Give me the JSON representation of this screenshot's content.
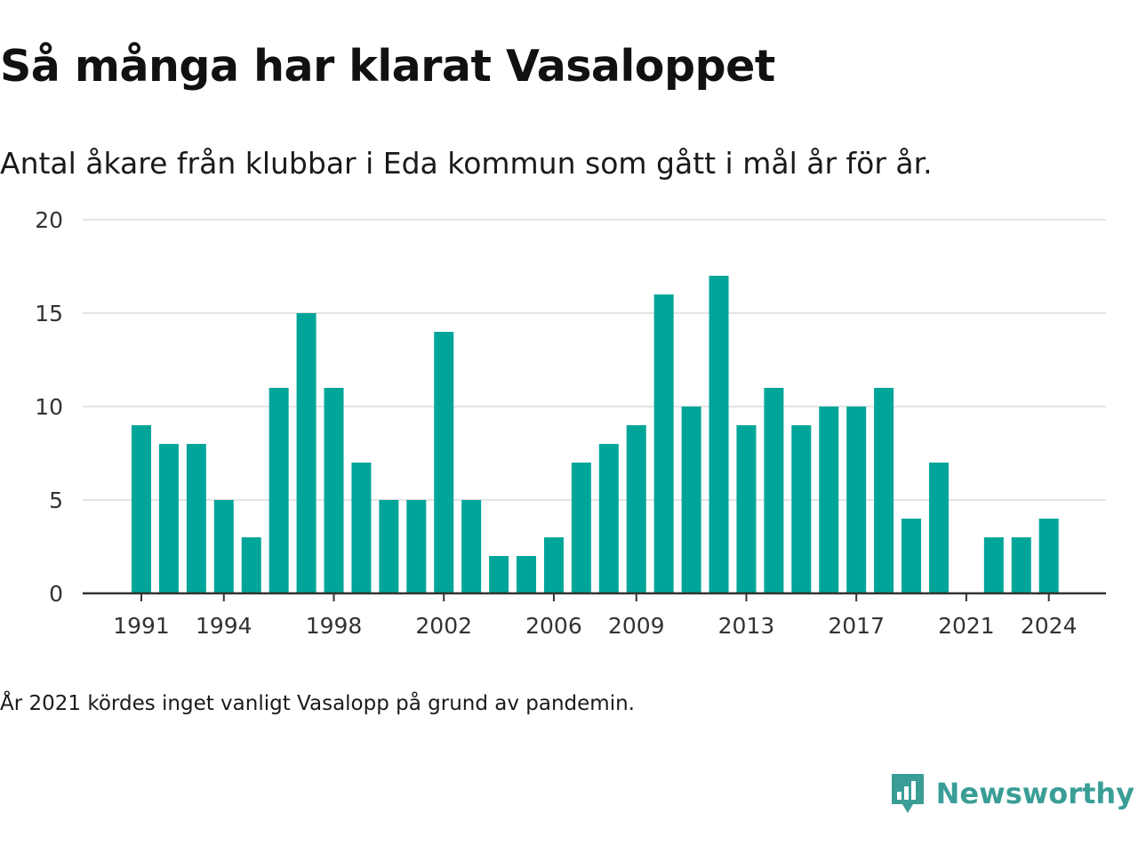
{
  "title": "Så många har klarat Vasaloppet",
  "subtitle": "Antal åkare från klubbar i Eda kommun som gått i mål år för år.",
  "note": "År 2021 kördes inget vanligt Vasalopp på grund av pandemin.",
  "brand": "Newsworthy",
  "colors": {
    "bar": "#00a59a",
    "grid": "#dcdcdc",
    "axis": "#333333",
    "brand": "#3a9e97"
  },
  "chart_data": {
    "type": "bar",
    "title": "Så många har klarat Vasaloppet",
    "subtitle": "Antal åkare från klubbar i Eda kommun som gått i mål år för år.",
    "xlabel": "",
    "ylabel": "",
    "ylim": [
      0,
      20
    ],
    "yticks": [
      0,
      5,
      10,
      15,
      20
    ],
    "xticks": [
      1991,
      1994,
      1998,
      2002,
      2006,
      2009,
      2013,
      2017,
      2021,
      2024
    ],
    "grid": true,
    "legend": "none",
    "categories": [
      1991,
      1992,
      1993,
      1994,
      1995,
      1996,
      1997,
      1998,
      1999,
      2000,
      2001,
      2002,
      2003,
      2004,
      2005,
      2006,
      2007,
      2008,
      2009,
      2010,
      2011,
      2012,
      2013,
      2014,
      2015,
      2016,
      2017,
      2018,
      2019,
      2020,
      2021,
      2022,
      2023,
      2024
    ],
    "values": [
      9,
      8,
      8,
      5,
      3,
      11,
      15,
      11,
      7,
      5,
      5,
      14,
      5,
      2,
      2,
      3,
      7,
      8,
      9,
      16,
      10,
      17,
      9,
      11,
      9,
      10,
      10,
      11,
      4,
      7,
      0,
      3,
      3,
      4
    ]
  }
}
